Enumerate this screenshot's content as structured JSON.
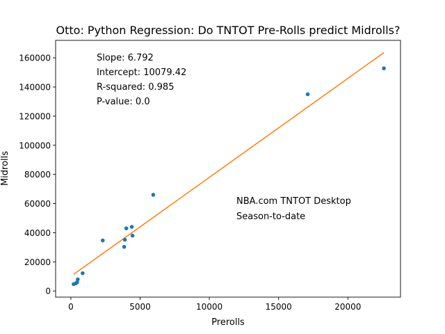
{
  "chart_data": {
    "type": "scatter",
    "title": "Otto: Python Regression: Do TNTOT Pre-Rolls predict Midrolls?",
    "xlabel": "Prerolls",
    "ylabel": "Midrolls",
    "xlim": [
      -1100,
      23800
    ],
    "ylim": [
      -4200,
      172000
    ],
    "xticks": [
      0,
      5000,
      10000,
      15000,
      20000
    ],
    "xtick_labels": [
      "0",
      "5000",
      "10000",
      "15000",
      "20000"
    ],
    "yticks": [
      0,
      20000,
      40000,
      60000,
      80000,
      100000,
      120000,
      140000,
      160000
    ],
    "ytick_labels": [
      "0",
      "20000",
      "40000",
      "60000",
      "80000",
      "100000",
      "120000",
      "140000",
      "160000"
    ],
    "grid": false,
    "series": [
      {
        "kind": "points",
        "color": "#1f77b4",
        "points": [
          [
            200,
            4700
          ],
          [
            350,
            5200
          ],
          [
            450,
            6000
          ],
          [
            500,
            8000
          ],
          [
            850,
            12200
          ],
          [
            2300,
            34700
          ],
          [
            3850,
            30300
          ],
          [
            3900,
            35200
          ],
          [
            4000,
            43000
          ],
          [
            4400,
            44000
          ],
          [
            4450,
            38000
          ],
          [
            5950,
            66000
          ],
          [
            17100,
            135000
          ],
          [
            22600,
            152800
          ]
        ]
      },
      {
        "kind": "fit-line",
        "color": "#ff7f0e",
        "slope": 6.792,
        "intercept": 10079.42,
        "x_range": [
          200,
          22600
        ]
      }
    ],
    "stats_annotation": {
      "slope": "Slope: 6.792",
      "intercept": "Intercept: 10079.42",
      "rsquared": "R-squared: 0.985",
      "pvalue": "P-value: 0.0"
    },
    "source_annotation": {
      "line1": "NBA.com TNTOT Desktop",
      "line2": "Season-to-date"
    }
  }
}
